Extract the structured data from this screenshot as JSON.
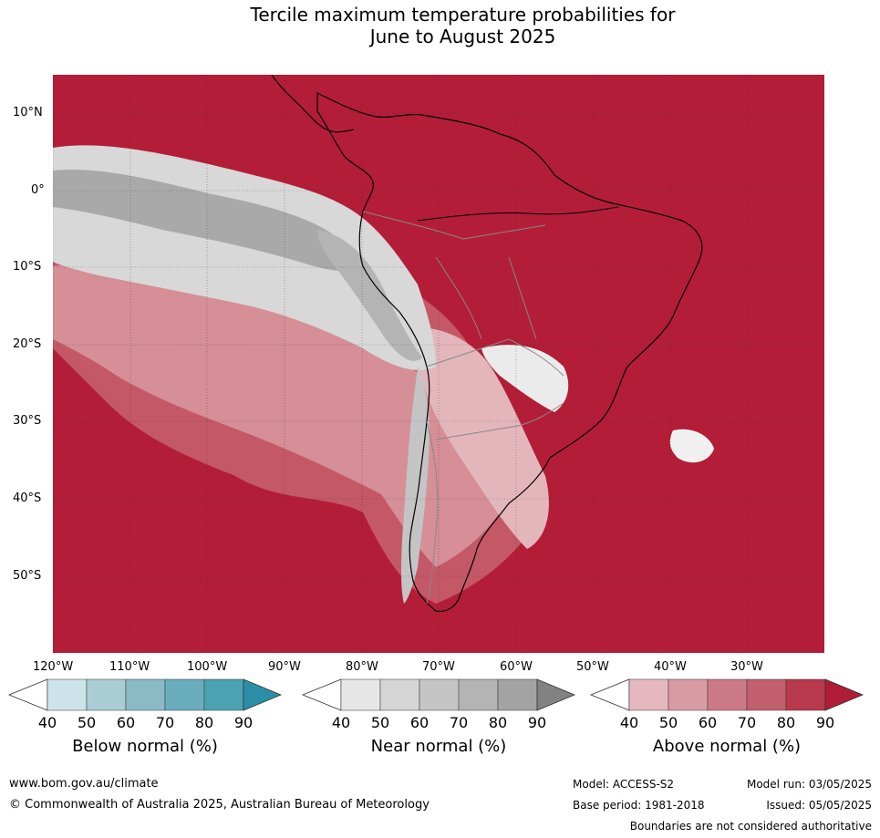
{
  "title_line1": "Tercile maximum temperature probabilities for",
  "title_line2": "June to August 2025",
  "lat_labels": [
    "10°N",
    "0°",
    "10°S",
    "20°S",
    "30°S",
    "40°S",
    "50°S"
  ],
  "lon_labels": [
    "120°W",
    "110°W",
    "100°W",
    "90°W",
    "80°W",
    "70°W",
    "60°W",
    "50°W",
    "40°W",
    "30°W"
  ],
  "colorbars": [
    {
      "label": "Below normal (%)",
      "ticks": [
        "40",
        "50",
        "60",
        "70",
        "80",
        "90"
      ],
      "colors": [
        "#ffffff",
        "#cde3ea",
        "#a9ccd5",
        "#8bbac7",
        "#6aaebe",
        "#4ba2b3",
        "#2a8fa6"
      ]
    },
    {
      "label": "Near normal (%)",
      "ticks": [
        "40",
        "50",
        "60",
        "70",
        "80",
        "90"
      ],
      "colors": [
        "#ffffff",
        "#e6e6e6",
        "#d5d5d5",
        "#c5c5c5",
        "#b4b4b4",
        "#a3a3a3",
        "#828282"
      ]
    },
    {
      "label": "Above normal (%)",
      "ticks": [
        "40",
        "50",
        "60",
        "70",
        "80",
        "90"
      ],
      "colors": [
        "#ffffff",
        "#e5b8bf",
        "#d99ba3",
        "#cc7a85",
        "#c2616d",
        "#b83a4c",
        "#b01c36"
      ]
    }
  ],
  "footer": {
    "url": "www.bom.gov.au/climate",
    "copyright": "© Commonwealth of Australia 2025, Australian Bureau of Meteorology",
    "model": "Model: ACCESS-S2",
    "base_period": "Base period: 1981-2018",
    "model_run": "Model run: 03/05/2025",
    "issued": "Issued: 05/05/2025",
    "disclaimer": "Boundaries are not considered authoritative"
  }
}
